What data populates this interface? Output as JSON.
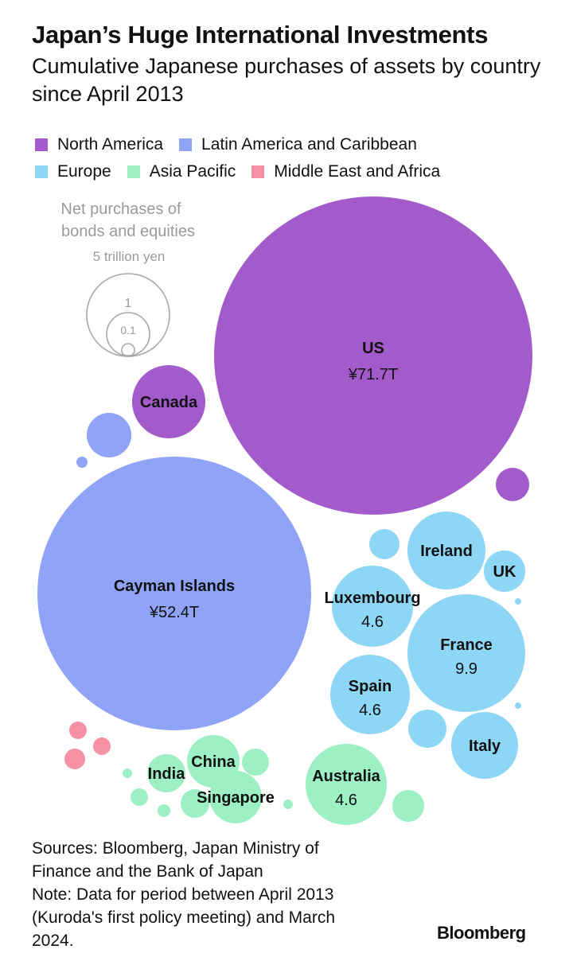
{
  "header": {
    "title": "Japan’s Huge International Investments",
    "subtitle": "Cumulative Japanese purchases of assets by country since April 2013"
  },
  "colors": {
    "North America": "#a35bcb",
    "Latin America and Caribbean": "#8fa4f7",
    "Europe": "#8dd6f5",
    "Asia Pacific": "#9cf0c4",
    "Middle East and Africa": "#f590a5"
  },
  "chart_data": {
    "type": "bubble",
    "title": "Japan’s Huge International Investments",
    "subtitle": "Cumulative Japanese purchases of assets by country since April 2013",
    "legend": [
      {
        "label": "North America",
        "color": "#a35bcb"
      },
      {
        "label": "Latin America and Caribbean",
        "color": "#8fa4f7"
      },
      {
        "label": "Europe",
        "color": "#8dd6f5"
      },
      {
        "label": "Asia Pacific",
        "color": "#9cf0c4"
      },
      {
        "label": "Middle East and Africa",
        "color": "#f590a5"
      }
    ],
    "size_key": {
      "title_line1": "Net purchases of",
      "title_line2": "bonds and equities",
      "unit": "5 trillion yen",
      "ref_labels": [
        "1",
        "0.1"
      ]
    },
    "bubbles": [
      {
        "label": "US",
        "value_label": "¥71.7T",
        "value": 71.7,
        "region": "North America"
      },
      {
        "label": "Canada",
        "value_label": "",
        "value": 3.4,
        "region": "North America"
      },
      {
        "label": "",
        "value_label": "",
        "value": 0.7,
        "region": "North America"
      },
      {
        "label": "Cayman Islands",
        "value_label": "¥52.4T",
        "value": 52.4,
        "region": "Latin America and Caribbean"
      },
      {
        "label": "",
        "value_label": "",
        "value": 1.2,
        "region": "Latin America and Caribbean"
      },
      {
        "label": "",
        "value_label": "",
        "value": 0.02,
        "region": "Latin America and Caribbean"
      },
      {
        "label": "Ireland",
        "value_label": "",
        "value": 3.5,
        "region": "Europe"
      },
      {
        "label": "UK",
        "value_label": "",
        "value": 1.0,
        "region": "Europe"
      },
      {
        "label": "Luxembourg",
        "value_label": "4.6",
        "value": 4.6,
        "region": "Europe"
      },
      {
        "label": "France",
        "value_label": "9.9",
        "value": 9.9,
        "region": "Europe"
      },
      {
        "label": "Spain",
        "value_label": "4.6",
        "value": 4.6,
        "region": "Europe"
      },
      {
        "label": "Italy",
        "value_label": "",
        "value": 2.6,
        "region": "Europe"
      },
      {
        "label": "",
        "value_label": "",
        "value": 0.6,
        "region": "Europe"
      },
      {
        "label": "",
        "value_label": "",
        "value": 1.0,
        "region": "Europe"
      },
      {
        "label": "",
        "value_label": "",
        "value": 0.01,
        "region": "Europe"
      },
      {
        "label": "",
        "value_label": "",
        "value": 0.01,
        "region": "Europe"
      },
      {
        "label": "Australia",
        "value_label": "4.6",
        "value": 4.6,
        "region": "Asia Pacific"
      },
      {
        "label": "China",
        "value_label": "",
        "value": 1.1,
        "region": "Asia Pacific"
      },
      {
        "label": "India",
        "value_label": "",
        "value": 0.9,
        "region": "Asia Pacific"
      },
      {
        "label": "Singapore",
        "value_label": "",
        "value": 1.1,
        "region": "Asia Pacific"
      },
      {
        "label": "",
        "value_label": "",
        "value": 0.5,
        "region": "Asia Pacific"
      },
      {
        "label": "",
        "value_label": "",
        "value": 0.6,
        "region": "Asia Pacific"
      },
      {
        "label": "",
        "value_label": "",
        "value": 0.5,
        "region": "Asia Pacific"
      },
      {
        "label": "",
        "value_label": "",
        "value": 0.2,
        "region": "Asia Pacific"
      },
      {
        "label": "",
        "value_label": "",
        "value": 0.1,
        "region": "Asia Pacific"
      },
      {
        "label": "",
        "value_label": "",
        "value": 0.1,
        "region": "Asia Pacific"
      },
      {
        "label": "",
        "value_label": "",
        "value": 0.04,
        "region": "Asia Pacific"
      },
      {
        "label": "",
        "value_label": "",
        "value": 0.3,
        "region": "Middle East and Africa"
      },
      {
        "label": "",
        "value_label": "",
        "value": 0.3,
        "region": "Middle East and Africa"
      },
      {
        "label": "",
        "value_label": "",
        "value": 0.2,
        "region": "Middle East and Africa"
      }
    ]
  },
  "footer": {
    "sources": "Sources: Bloomberg, Japan Ministry of Finance and the Bank of Japan",
    "note": "Note: Data for period between April 2013 (Kuroda's first policy meeting) and March 2024.",
    "brand": "Bloomberg"
  }
}
